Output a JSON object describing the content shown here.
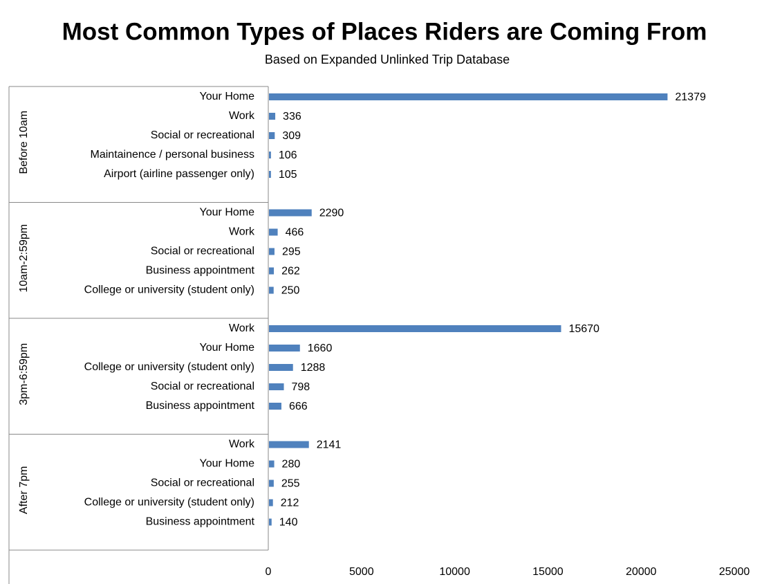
{
  "chart_data": {
    "type": "bar",
    "orientation": "horizontal",
    "title": "Most Common Types of Places Riders are Coming From",
    "subtitle": "Based on Expanded Unlinked Trip Database",
    "color": "#4f81bd",
    "groups": [
      {
        "name": "Before 10am",
        "categories": [
          "Your Home",
          "Work",
          "Social or recreational",
          "Maintainence / personal business",
          "Airport (airline passenger only)"
        ],
        "values": [
          21379,
          336,
          309,
          106,
          105
        ]
      },
      {
        "name": "10am-2:59pm",
        "categories": [
          "Your Home",
          "Work",
          "Social or recreational",
          "Business appointment",
          "College or university (student only)"
        ],
        "values": [
          2290,
          466,
          295,
          262,
          250
        ]
      },
      {
        "name": "3pm-6:59pm",
        "categories": [
          "Work",
          "Your Home",
          "College or university (student only)",
          "Social or recreational",
          "Business appointment"
        ],
        "values": [
          15670,
          1660,
          1288,
          798,
          666
        ]
      },
      {
        "name": "After 7pm",
        "categories": [
          "Work",
          "Your Home",
          "Social or recreational",
          "College or university (student only)",
          "Business appointment"
        ],
        "values": [
          2141,
          280,
          255,
          212,
          140
        ]
      }
    ],
    "xlim": [
      0,
      25000
    ],
    "xticks": [
      0,
      5000,
      10000,
      15000,
      20000,
      25000
    ],
    "grid": false
  }
}
